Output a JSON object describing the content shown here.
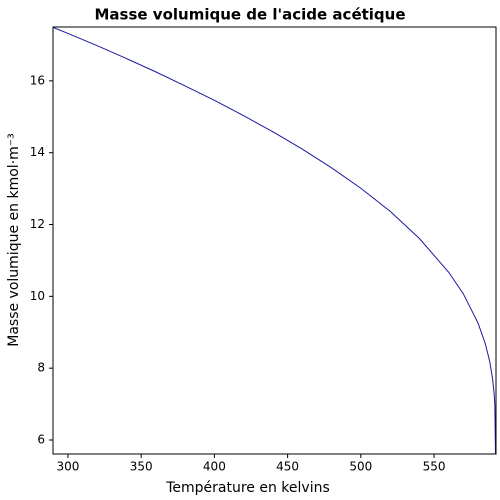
{
  "chart_data": {
    "type": "line",
    "title": "Masse volumique de l'acide acétique",
    "x_label": "Température en kelvins",
    "y_label": "Masse volumique en kmol·m⁻³",
    "x": [
      289.8,
      300,
      320,
      340,
      360,
      380,
      400,
      420,
      440,
      460,
      480,
      500,
      520,
      540,
      560,
      570,
      580,
      585,
      588,
      590,
      591,
      591.5,
      591.95
    ],
    "series": [
      {
        "color": "#1a1a9e",
        "values": [
          17.49,
          17.32,
          16.98,
          16.62,
          16.25,
          15.86,
          15.46,
          15.03,
          14.58,
          14.1,
          13.58,
          13.01,
          12.37,
          11.61,
          10.67,
          10.07,
          9.26,
          8.68,
          8.19,
          7.69,
          7.3,
          6.97,
          5.6
        ]
      }
    ],
    "xlim": [
      289.8,
      592.3
    ],
    "ylim": [
      5.61,
      17.5
    ],
    "xticks": [
      300,
      350,
      400,
      450,
      500,
      550
    ],
    "yticks": [
      6,
      8,
      10,
      12,
      14,
      16
    ],
    "grid": false
  }
}
